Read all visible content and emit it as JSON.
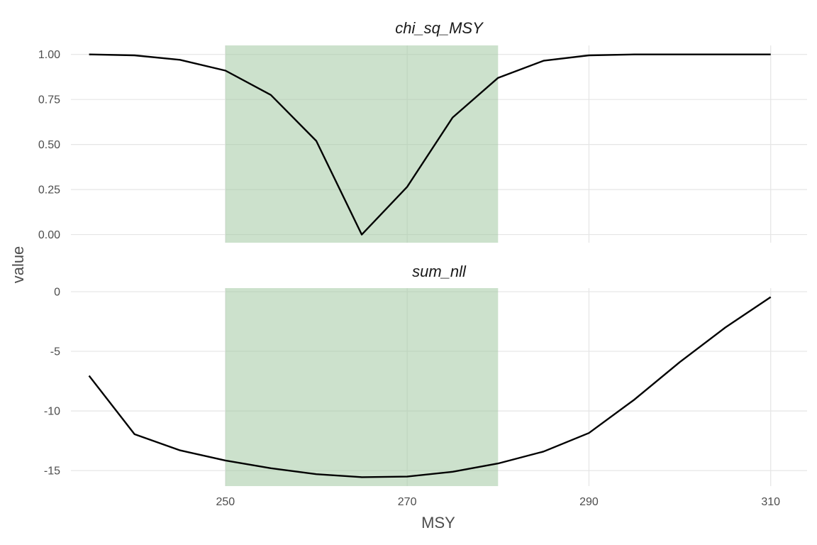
{
  "chart_data": {
    "type": "line",
    "xlabel": "MSY",
    "ylabel": "value",
    "x_ticks": [
      250,
      270,
      290,
      310
    ],
    "xlim": [
      233,
      314
    ],
    "band": {
      "x_min": 250,
      "x_max": 280,
      "color": "#a3c9a3"
    },
    "grid": true,
    "panels": [
      {
        "strip_label": "chi_sq_MSY",
        "ylim": [
          -0.045,
          1.05
        ],
        "y_ticks": [
          0.0,
          0.25,
          0.5,
          0.75,
          1.0
        ],
        "y_tick_labels": [
          "0.00",
          "0.25",
          "0.50",
          "0.75",
          "1.00"
        ],
        "x": [
          235,
          240,
          245,
          250,
          255,
          260,
          265,
          270,
          275,
          280,
          285,
          290,
          295,
          300,
          305,
          310
        ],
        "values": [
          1.0,
          0.995,
          0.97,
          0.91,
          0.775,
          0.52,
          0.0,
          0.265,
          0.65,
          0.87,
          0.965,
          0.995,
          1.0,
          1.0,
          1.0,
          1.0
        ]
      },
      {
        "strip_label": "sum_nll",
        "ylim": [
          -16.3,
          0.3
        ],
        "y_ticks": [
          0,
          -5,
          -10,
          -15
        ],
        "y_tick_labels": [
          "0",
          "-5",
          "-10",
          "-15"
        ],
        "x": [
          235,
          240,
          245,
          250,
          255,
          260,
          265,
          270,
          275,
          280,
          285,
          290,
          295,
          300,
          305,
          310
        ],
        "values": [
          -7.05,
          -11.95,
          -13.3,
          -14.15,
          -14.8,
          -15.3,
          -15.55,
          -15.5,
          -15.1,
          -14.4,
          -13.4,
          -11.85,
          -9.05,
          -5.9,
          -3.0,
          -0.45
        ]
      }
    ]
  }
}
